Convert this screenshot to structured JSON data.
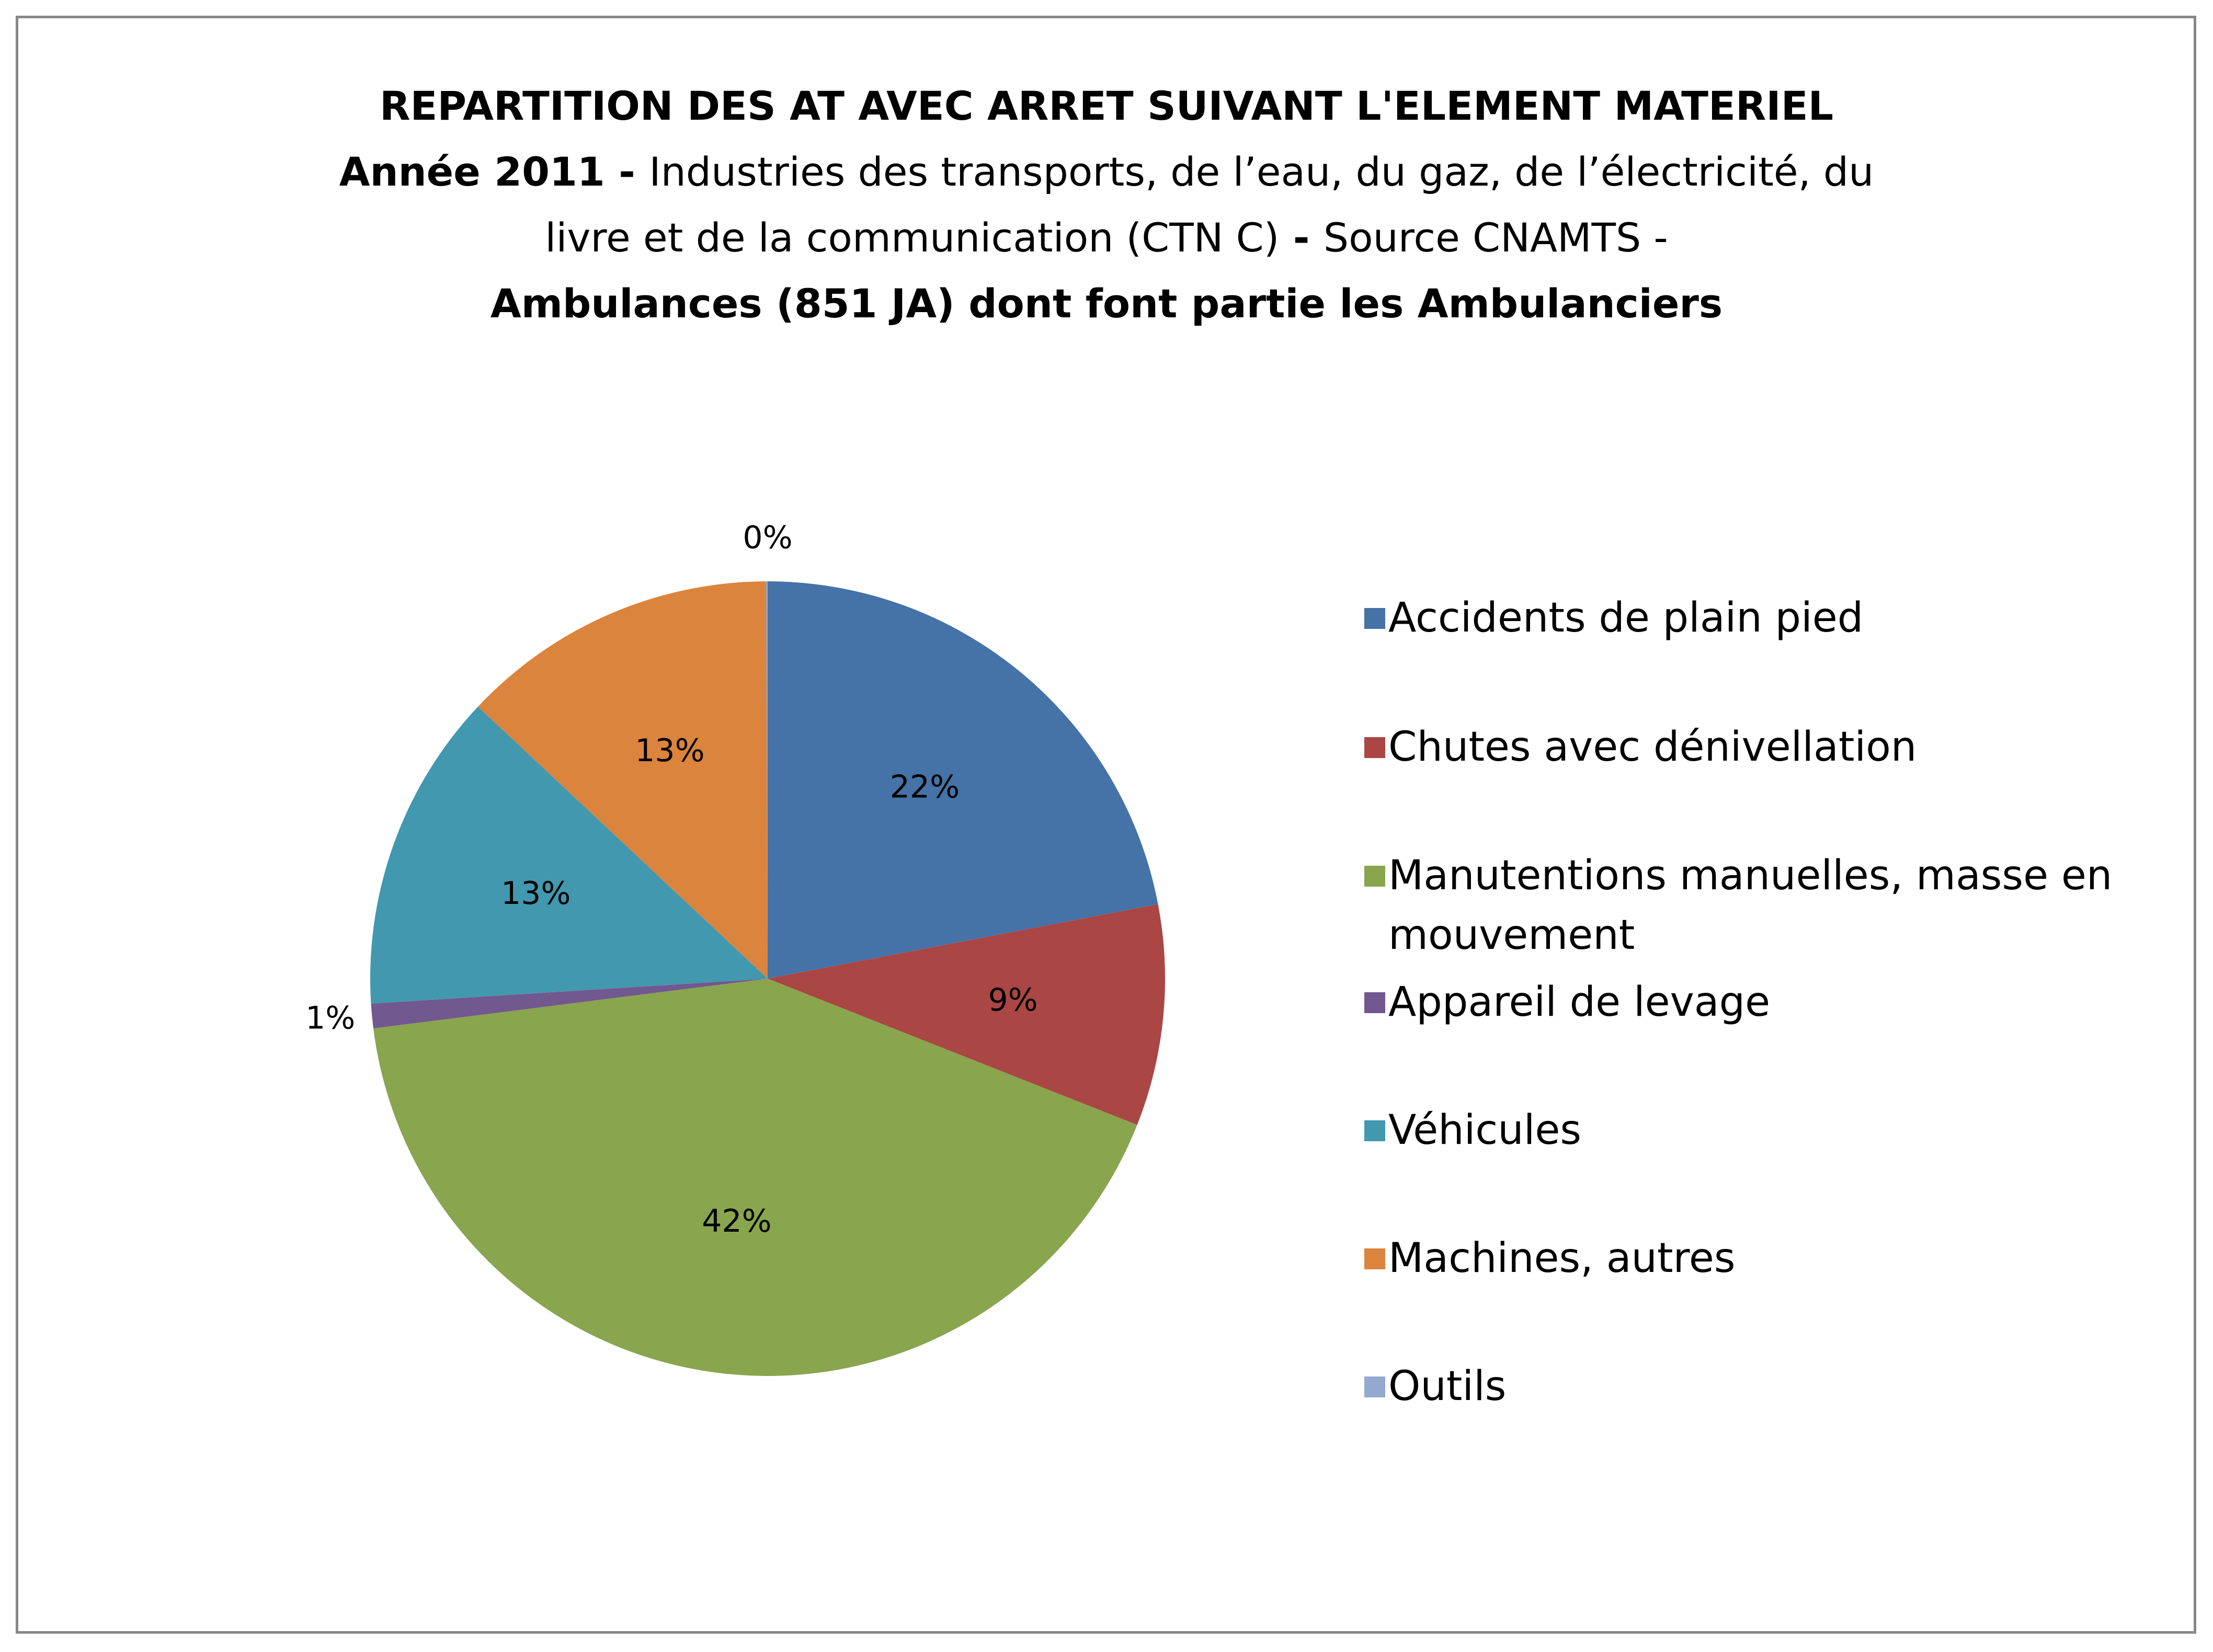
{
  "chart_data": {
    "type": "pie",
    "title": "REPARTITION DES AT AVEC ARRET SUIVANT L'ELEMENT MATERIEL",
    "subtitle_line1_bold": "Année 2011",
    "subtitle_line1_sep": " - ",
    "subtitle_line1_rest": "Industries des transports, de l’eau, du gaz, de l’électricité, du",
    "subtitle_line2": "livre et de la communication (CTN C)",
    "subtitle_line2_sep": " - ",
    "subtitle_line2_rest": "Source CNAMTS -",
    "subtitle_line3": "Ambulances (851 JA) dont font partie les Ambulanciers",
    "legend_position": "right",
    "slices": [
      {
        "name": "Accidents de plain pied",
        "value": 22,
        "label": "22%",
        "color": "#4572A7"
      },
      {
        "name": "Chutes avec dénivellation",
        "value": 9,
        "label": "9%",
        "color": "#AA4643"
      },
      {
        "name": "Manutentions manuelles, masse en mouvement",
        "value": 42,
        "label": "42%",
        "color": "#89A54E"
      },
      {
        "name": "Appareil de levage",
        "value": 1,
        "label": "1%",
        "color": "#71588F"
      },
      {
        "name": "Véhicules",
        "value": 13,
        "label": "13%",
        "color": "#4198AF"
      },
      {
        "name": "Machines, autres",
        "value": 13,
        "label": "13%",
        "color": "#DB843D"
      },
      {
        "name": "Outils",
        "value": 0,
        "label": "0%",
        "color": "#93A9CF"
      }
    ]
  }
}
